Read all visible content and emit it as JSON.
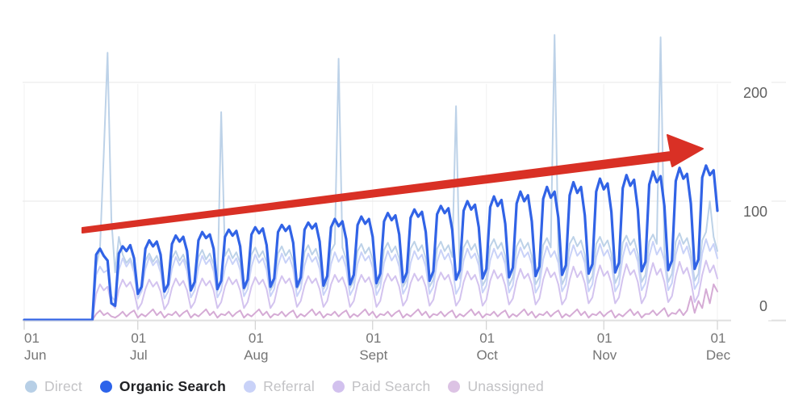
{
  "chart_data": {
    "type": "line",
    "title": "",
    "x_description": "daily values from Jun 1 to Dec 1",
    "x_axis": {
      "tick_days": [
        0,
        30,
        61,
        92,
        122,
        153,
        183
      ],
      "tick_labels": [
        [
          "01",
          "Jun"
        ],
        [
          "01",
          "Jul"
        ],
        [
          "01",
          "Aug"
        ],
        [
          "01",
          "Sept"
        ],
        [
          "01",
          "Oct"
        ],
        [
          "01",
          "Nov"
        ],
        [
          "01",
          "Dec"
        ]
      ]
    },
    "y_axis": {
      "tick_values": [
        200,
        100,
        0
      ],
      "tick_labels": [
        "200",
        "100",
        "0"
      ],
      "ylim": [
        0,
        260
      ],
      "position": "right"
    },
    "grid": "horizontal-and-faint-vertical",
    "legend_position": "bottom-left",
    "series": [
      {
        "name": "Direct",
        "active": false,
        "line_color": "#bdd2e8",
        "dot_color": "#b7cfe6",
        "values": [
          0,
          0,
          0,
          0,
          0,
          0,
          0,
          0,
          0,
          0,
          0,
          0,
          0,
          0,
          0,
          0,
          0,
          0,
          0,
          45,
          60,
          140,
          225,
          85,
          40,
          70,
          55,
          48,
          52,
          44,
          22,
          28,
          50,
          56,
          49,
          54,
          45,
          23,
          29,
          52,
          58,
          50,
          55,
          46,
          24,
          30,
          53,
          59,
          51,
          56,
          47,
          24,
          175,
          54,
          60,
          52,
          57,
          48,
          25,
          31,
          55,
          61,
          53,
          58,
          49,
          25,
          31,
          56,
          62,
          54,
          59,
          50,
          26,
          32,
          57,
          63,
          55,
          60,
          50,
          26,
          32,
          58,
          64,
          220,
          61,
          51,
          27,
          33,
          58,
          64,
          56,
          61,
          51,
          27,
          33,
          59,
          65,
          57,
          62,
          52,
          28,
          34,
          60,
          66,
          58,
          63,
          52,
          28,
          34,
          60,
          66,
          58,
          63,
          53,
          180,
          35,
          61,
          67,
          59,
          64,
          53,
          29,
          35,
          62,
          68,
          60,
          65,
          54,
          29,
          36,
          62,
          68,
          60,
          65,
          54,
          30,
          36,
          63,
          69,
          61,
          240,
          55,
          30,
          37,
          64,
          70,
          62,
          67,
          55,
          31,
          37,
          64,
          70,
          62,
          67,
          56,
          31,
          38,
          65,
          71,
          63,
          68,
          56,
          32,
          38,
          66,
          72,
          64,
          238,
          57,
          32,
          39,
          66,
          73,
          64,
          69,
          57,
          33,
          39,
          67,
          74,
          100,
          70,
          58
        ]
      },
      {
        "name": "Organic Search",
        "active": true,
        "line_color": "#3163e6",
        "dot_color": "#2c63ea",
        "values": [
          0,
          0,
          0,
          0,
          0,
          0,
          0,
          0,
          0,
          0,
          0,
          0,
          0,
          0,
          0,
          0,
          0,
          0,
          0,
          55,
          60,
          54,
          50,
          14,
          12,
          56,
          62,
          58,
          63,
          52,
          22,
          28,
          60,
          67,
          62,
          66,
          55,
          24,
          30,
          64,
          71,
          66,
          70,
          58,
          25,
          32,
          67,
          74,
          69,
          72,
          60,
          26,
          33,
          70,
          76,
          71,
          75,
          62,
          27,
          34,
          72,
          78,
          73,
          77,
          63,
          28,
          35,
          74,
          80,
          75,
          79,
          65,
          28,
          36,
          76,
          82,
          77,
          81,
          66,
          29,
          37,
          78,
          85,
          79,
          83,
          68,
          30,
          38,
          80,
          87,
          81,
          85,
          70,
          31,
          39,
          83,
          90,
          84,
          88,
          72,
          32,
          40,
          86,
          93,
          87,
          91,
          74,
          33,
          41,
          89,
          96,
          90,
          94,
          76,
          34,
          42,
          92,
          100,
          93,
          97,
          78,
          35,
          43,
          95,
          104,
          96,
          101,
          81,
          36,
          44,
          98,
          108,
          100,
          105,
          83,
          37,
          45,
          102,
          112,
          103,
          108,
          86,
          38,
          46,
          105,
          116,
          107,
          112,
          88,
          39,
          47,
          108,
          119,
          110,
          115,
          91,
          40,
          48,
          111,
          122,
          113,
          118,
          93,
          41,
          49,
          114,
          125,
          116,
          121,
          96,
          42,
          50,
          117,
          128,
          119,
          123,
          98,
          43,
          51,
          120,
          130,
          122,
          126,
          92
        ]
      },
      {
        "name": "Referral",
        "active": false,
        "line_color": "#c9d2f8",
        "dot_color": "#c9d2f8",
        "values": [
          0,
          0,
          0,
          0,
          0,
          0,
          0,
          0,
          0,
          0,
          0,
          0,
          0,
          0,
          0,
          0,
          0,
          0,
          0,
          38,
          45,
          40,
          42,
          20,
          16,
          42,
          52,
          45,
          50,
          40,
          18,
          24,
          43,
          53,
          46,
          50,
          40,
          18,
          24,
          43,
          53,
          46,
          51,
          41,
          19,
          25,
          44,
          54,
          47,
          51,
          41,
          19,
          25,
          44,
          54,
          47,
          52,
          42,
          20,
          26,
          45,
          55,
          48,
          52,
          42,
          20,
          26,
          46,
          56,
          48,
          53,
          43,
          20,
          26,
          46,
          56,
          49,
          53,
          43,
          21,
          27,
          47,
          57,
          49,
          54,
          44,
          21,
          27,
          47,
          57,
          50,
          54,
          44,
          21,
          27,
          48,
          58,
          50,
          55,
          45,
          22,
          28,
          48,
          58,
          51,
          55,
          45,
          22,
          28,
          49,
          59,
          51,
          56,
          46,
          22,
          28,
          50,
          60,
          52,
          56,
          46,
          23,
          29,
          50,
          60,
          52,
          57,
          47,
          23,
          29,
          51,
          61,
          53,
          57,
          47,
          23,
          29,
          51,
          62,
          53,
          58,
          48,
          24,
          30,
          52,
          63,
          54,
          58,
          48,
          24,
          30,
          53,
          64,
          54,
          59,
          49,
          24,
          30,
          53,
          65,
          55,
          60,
          49,
          25,
          31,
          54,
          66,
          55,
          61,
          50,
          25,
          31,
          55,
          67,
          56,
          62,
          50,
          26,
          32,
          56,
          68,
          58,
          64,
          52
        ]
      },
      {
        "name": "Paid Search",
        "active": false,
        "line_color": "#d3c3ef",
        "dot_color": "#d2c1ee",
        "values": [
          0,
          0,
          0,
          0,
          0,
          0,
          0,
          0,
          0,
          0,
          0,
          0,
          0,
          0,
          0,
          0,
          0,
          0,
          0,
          22,
          30,
          25,
          28,
          14,
          10,
          26,
          34,
          28,
          32,
          24,
          9,
          14,
          26,
          34,
          28,
          32,
          24,
          9,
          14,
          27,
          35,
          29,
          33,
          25,
          10,
          15,
          27,
          35,
          29,
          33,
          25,
          10,
          15,
          28,
          36,
          30,
          34,
          25,
          10,
          15,
          28,
          36,
          30,
          34,
          26,
          10,
          15,
          29,
          37,
          31,
          35,
          26,
          11,
          16,
          29,
          37,
          31,
          35,
          26,
          11,
          16,
          30,
          38,
          32,
          36,
          27,
          11,
          16,
          30,
          38,
          32,
          36,
          27,
          11,
          16,
          31,
          39,
          33,
          37,
          28,
          12,
          17,
          31,
          39,
          33,
          37,
          28,
          12,
          17,
          32,
          40,
          34,
          38,
          28,
          12,
          17,
          32,
          41,
          34,
          38,
          29,
          12,
          17,
          33,
          42,
          35,
          39,
          29,
          13,
          18,
          33,
          43,
          35,
          39,
          30,
          13,
          18,
          34,
          44,
          36,
          40,
          30,
          13,
          18,
          34,
          45,
          36,
          41,
          31,
          14,
          19,
          35,
          46,
          37,
          41,
          31,
          14,
          19,
          35,
          47,
          38,
          42,
          32,
          14,
          20,
          36,
          48,
          38,
          43,
          32,
          15,
          20,
          37,
          49,
          39,
          44,
          33,
          15,
          21,
          38,
          50,
          40,
          46,
          35
        ]
      },
      {
        "name": "Unassigned",
        "active": false,
        "line_color": "#d5abd5",
        "dot_color": "#dcc3e4",
        "values": [
          0,
          0,
          0,
          0,
          0,
          0,
          0,
          0,
          0,
          0,
          0,
          0,
          0,
          0,
          0,
          0,
          0,
          0,
          0,
          5,
          8,
          4,
          6,
          3,
          2,
          4,
          7,
          3,
          6,
          8,
          2,
          5,
          3,
          6,
          9,
          4,
          7,
          2,
          5,
          4,
          7,
          3,
          6,
          8,
          2,
          5,
          3,
          6,
          9,
          4,
          7,
          2,
          5,
          4,
          7,
          3,
          6,
          8,
          2,
          5,
          3,
          6,
          9,
          4,
          7,
          2,
          5,
          4,
          7,
          3,
          6,
          8,
          2,
          5,
          3,
          6,
          9,
          4,
          7,
          2,
          5,
          4,
          7,
          3,
          6,
          8,
          2,
          5,
          3,
          6,
          9,
          4,
          7,
          2,
          5,
          4,
          7,
          3,
          6,
          8,
          2,
          5,
          3,
          6,
          9,
          4,
          7,
          2,
          5,
          4,
          7,
          3,
          6,
          8,
          2,
          5,
          3,
          6,
          9,
          4,
          7,
          2,
          5,
          4,
          7,
          3,
          6,
          8,
          2,
          5,
          3,
          6,
          9,
          4,
          7,
          2,
          5,
          4,
          7,
          3,
          6,
          8,
          2,
          5,
          3,
          6,
          9,
          4,
          7,
          2,
          5,
          4,
          7,
          3,
          6,
          8,
          2,
          5,
          3,
          6,
          9,
          4,
          7,
          2,
          5,
          5,
          8,
          4,
          7,
          10,
          3,
          6,
          5,
          9,
          4,
          8,
          20,
          6,
          16,
          10,
          26,
          14,
          30,
          24
        ]
      }
    ],
    "annotation": {
      "type": "arrow",
      "description": "red upward trend arrow over the series",
      "color": "#d93025"
    }
  },
  "colors": {
    "background": "#ffffff",
    "gridline": "#e7e7e7",
    "vertical_gridline": "#f1f1f1",
    "axis_line": "#dadada",
    "tick": "#c9c9c9",
    "x_label": "#757575",
    "y_label": "#606060",
    "legend_inactive_text": "#c2c2c5",
    "legend_active_text": "#202124"
  }
}
